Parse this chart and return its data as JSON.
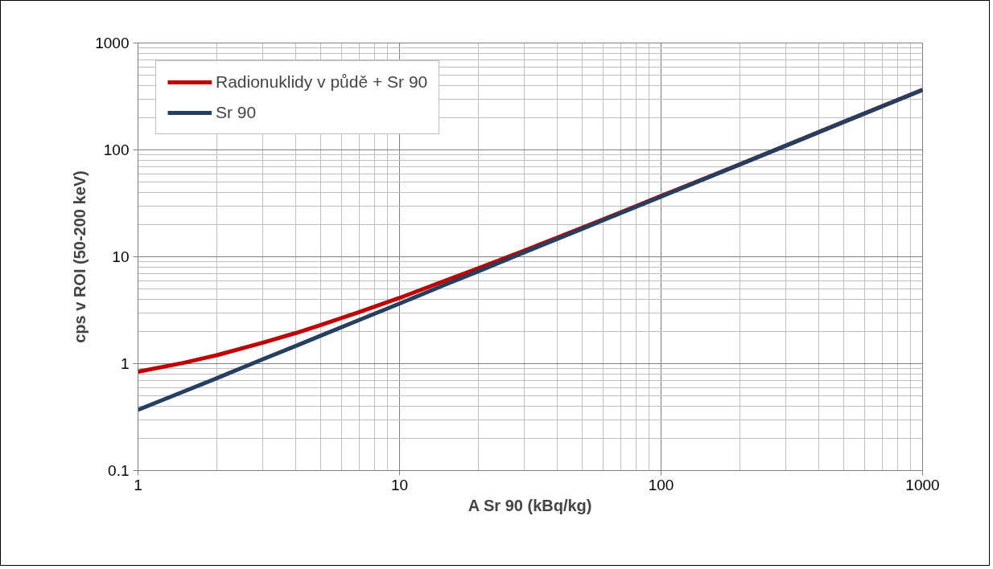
{
  "chart_data": {
    "type": "line",
    "xlabel": "A Sr 90 (kBq/kg)",
    "ylabel": "cps v ROI (50-200 keV)",
    "x": [
      1,
      1.5,
      2,
      3,
      4,
      5,
      7,
      10,
      15,
      20,
      30,
      50,
      70,
      100,
      200,
      500,
      1000
    ],
    "series": [
      {
        "name": "Radionuklidy v půdě + Sr 90",
        "color": "#c00000",
        "values": [
          0.84,
          1.02,
          1.2,
          1.57,
          1.93,
          2.3,
          3.03,
          4.12,
          6.0,
          7.8,
          11.4,
          18.7,
          26,
          37,
          73,
          183,
          365
        ]
      },
      {
        "name": "Sr 90",
        "color": "#243f60",
        "values": [
          0.37,
          0.55,
          0.73,
          1.1,
          1.46,
          1.83,
          2.56,
          3.65,
          5.5,
          7.3,
          11,
          18.3,
          25.6,
          36.5,
          73,
          183,
          365
        ]
      }
    ],
    "log": "xy",
    "xlim": [
      1,
      1000
    ],
    "ylim": [
      0.1,
      1000
    ],
    "xticks": [
      1,
      10,
      100,
      1000
    ],
    "yticks": [
      0.1,
      1,
      10,
      100,
      1000
    ],
    "grid": true,
    "legend": "top left",
    "marker": "none",
    "line_style": "solid"
  }
}
